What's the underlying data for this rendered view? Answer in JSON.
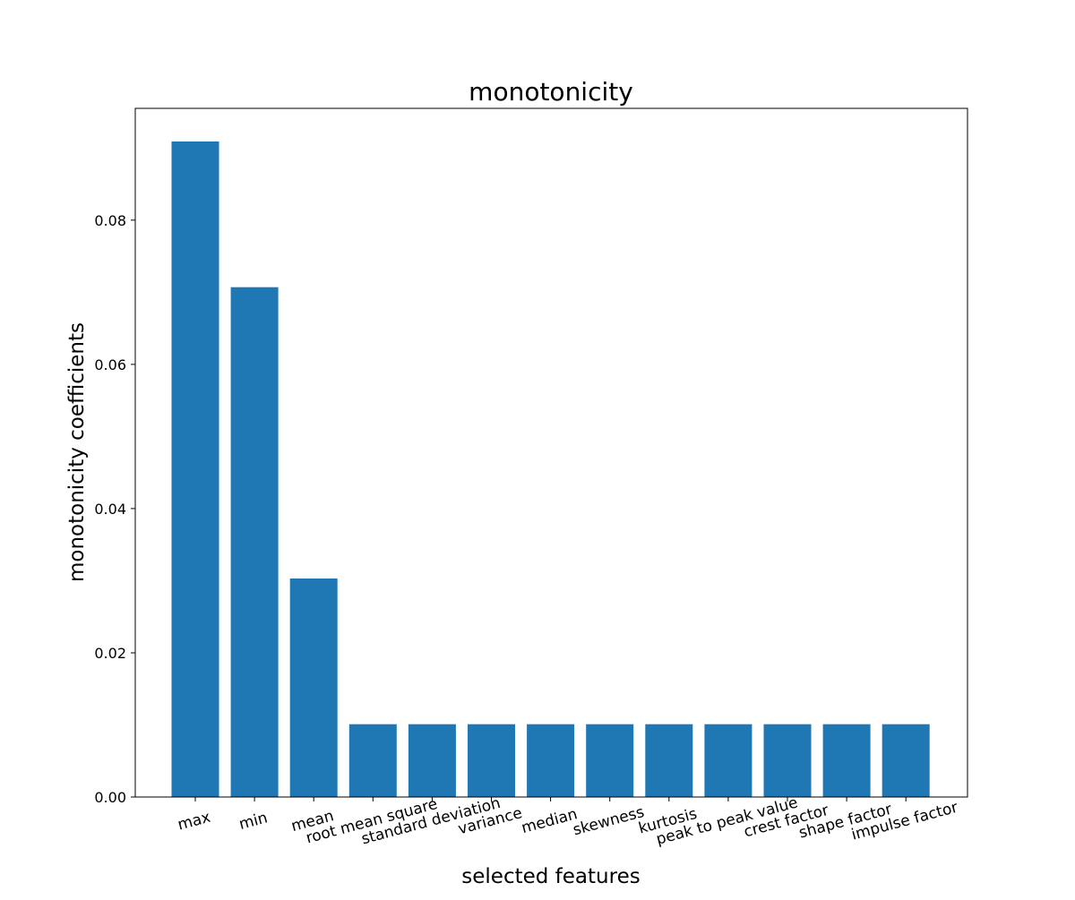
{
  "chart_data": {
    "type": "bar",
    "title": "monotonicity",
    "xlabel": "selected features",
    "ylabel": "monotonicity coefficients",
    "categories": [
      "max",
      "min",
      "mean",
      "root mean square",
      "standard deviation",
      "variance",
      "median",
      "skewness",
      "kurtosis",
      "peak to peak value",
      "crest factor",
      "shape factor",
      "impulse factor"
    ],
    "values": [
      0.0909,
      0.0707,
      0.0303,
      0.0101,
      0.0101,
      0.0101,
      0.0101,
      0.0101,
      0.0101,
      0.0101,
      0.0101,
      0.0101,
      0.0101
    ],
    "yticks": [
      0.0,
      0.02,
      0.04,
      0.06,
      0.08
    ],
    "ytick_labels": [
      "0.00",
      "0.02",
      "0.04",
      "0.06",
      "0.08"
    ],
    "ylim": [
      0,
      0.0955
    ],
    "xtick_rotation_deg": -15,
    "grid": false,
    "bar_color": "#1f77b4"
  }
}
